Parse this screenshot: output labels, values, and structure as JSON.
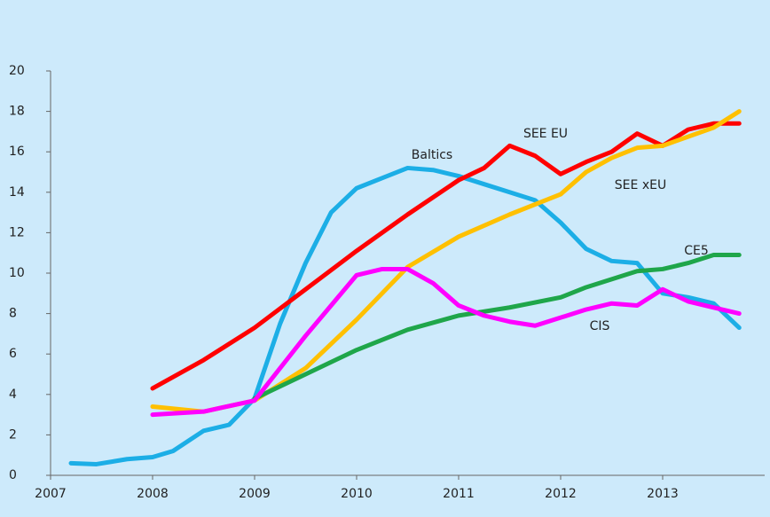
{
  "chart_data": {
    "type": "line",
    "xlim": [
      2007,
      2014
    ],
    "xticks": [
      2007,
      2008,
      2009,
      2010,
      2011,
      2012,
      2013
    ],
    "ylim": [
      0,
      20
    ],
    "yticks": [
      0,
      2,
      4,
      6,
      8,
      10,
      12,
      14,
      16,
      18,
      20
    ],
    "series": [
      {
        "name": "Baltics",
        "color": "#1caee6",
        "x": [
          2007.2,
          2007.45,
          2007.75,
          2008,
          2008.2,
          2008.5,
          2008.75,
          2009,
          2009.25,
          2009.5,
          2009.75,
          2010,
          2010.25,
          2010.5,
          2010.75,
          2011,
          2011.25,
          2011.5,
          2011.75,
          2012,
          2012.25,
          2012.5,
          2012.75,
          2013,
          2013.25,
          2013.5,
          2013.75
        ],
        "values": [
          0.6,
          0.55,
          0.8,
          0.9,
          1.2,
          2.2,
          2.5,
          3.8,
          7.5,
          10.5,
          13.0,
          14.2,
          14.7,
          15.2,
          15.1,
          14.8,
          14.4,
          14.0,
          13.6,
          12.5,
          11.2,
          10.6,
          10.5,
          9.0,
          8.8,
          8.5,
          7.3
        ]
      },
      {
        "name": "SEE EU",
        "color": "#ff0000",
        "x": [
          2008,
          2008.5,
          2009,
          2009.5,
          2010,
          2010.5,
          2011,
          2011.25,
          2011.5,
          2011.75,
          2012,
          2012.25,
          2012.5,
          2012.75,
          2013,
          2013.25,
          2013.5,
          2013.75
        ],
        "values": [
          4.3,
          5.7,
          7.3,
          9.2,
          11.1,
          12.9,
          14.6,
          15.2,
          16.3,
          15.8,
          14.9,
          15.5,
          16.0,
          16.9,
          16.3,
          17.1,
          17.4,
          17.4
        ]
      },
      {
        "name": "SEE xEU",
        "color": "#ffc000",
        "x": [
          2008,
          2008.5,
          2009,
          2009.5,
          2010,
          2010.5,
          2011,
          2011.5,
          2012,
          2012.25,
          2012.5,
          2012.75,
          2013,
          2013.5,
          2013.75
        ],
        "values": [
          3.4,
          3.15,
          3.7,
          5.3,
          7.7,
          10.3,
          11.8,
          12.9,
          13.9,
          15.0,
          15.7,
          16.2,
          16.3,
          17.2,
          18.0
        ]
      },
      {
        "name": "CE5",
        "color": "#1fa64a",
        "x": [
          2009,
          2009.5,
          2010,
          2010.5,
          2011,
          2011.5,
          2012,
          2012.25,
          2012.5,
          2012.75,
          2013,
          2013.25,
          2013.5,
          2013.75
        ],
        "values": [
          3.8,
          5.0,
          6.2,
          7.2,
          7.9,
          8.3,
          8.8,
          9.3,
          9.7,
          10.1,
          10.2,
          10.5,
          10.9,
          10.9
        ]
      },
      {
        "name": "CIS",
        "color": "#ff00ff",
        "x": [
          2008,
          2008.5,
          2009,
          2009.5,
          2010,
          2010.25,
          2010.5,
          2010.75,
          2011,
          2011.25,
          2011.5,
          2011.75,
          2012,
          2012.25,
          2012.5,
          2012.75,
          2013,
          2013.25,
          2013.5,
          2013.75
        ],
        "values": [
          3.0,
          3.15,
          3.7,
          6.9,
          9.9,
          10.2,
          10.2,
          9.5,
          8.4,
          7.9,
          7.6,
          7.4,
          7.8,
          8.2,
          8.5,
          8.4,
          9.2,
          8.6,
          8.3,
          8.0
        ]
      }
    ]
  }
}
